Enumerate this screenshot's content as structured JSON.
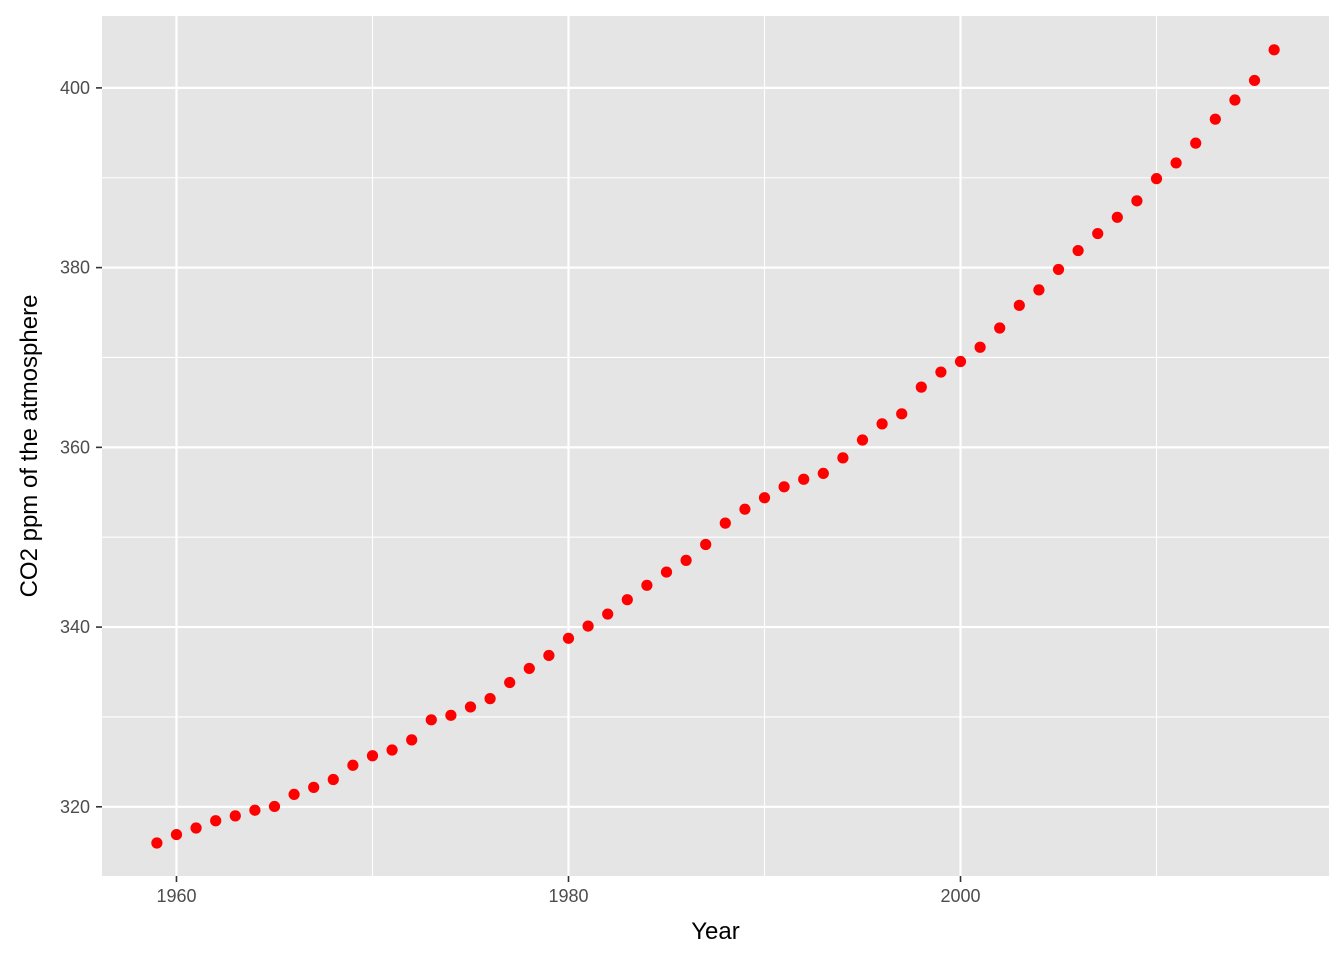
{
  "chart_data": {
    "type": "scatter",
    "title": "",
    "xlabel": "Year",
    "ylabel": "CO2 ppm of the atmosphere",
    "xlim": [
      1956.2,
      2018.8
    ],
    "ylim": [
      312.3,
      408.0
    ],
    "x_ticks": [
      1960,
      1980,
      2000
    ],
    "y_ticks": [
      320,
      340,
      360,
      380,
      400
    ],
    "grid": true,
    "panel_background": "#e5e5e5",
    "grid_color": "#ffffff",
    "point_color": "#ff0000",
    "legend": "none",
    "series": [
      {
        "x": [
          1959,
          1960,
          1961,
          1962,
          1963,
          1964,
          1965,
          1966,
          1967,
          1968,
          1969,
          1970,
          1971,
          1972,
          1973,
          1974,
          1975,
          1976,
          1977,
          1978,
          1979,
          1980,
          1981,
          1982,
          1983,
          1984,
          1985,
          1986,
          1987,
          1988,
          1989,
          1990,
          1991,
          1992,
          1993,
          1994,
          1995,
          1996,
          1997,
          1998,
          1999,
          2000,
          2001,
          2002,
          2003,
          2004,
          2005,
          2006,
          2007,
          2008,
          2009,
          2010,
          2011,
          2012,
          2013,
          2014,
          2015,
          2016
        ],
        "y": [
          315.97,
          316.91,
          317.64,
          318.45,
          318.99,
          319.62,
          320.04,
          321.38,
          322.16,
          323.04,
          324.62,
          325.68,
          326.32,
          327.45,
          329.68,
          330.18,
          331.11,
          332.04,
          333.83,
          335.4,
          336.84,
          338.75,
          340.11,
          341.45,
          343.05,
          344.65,
          346.12,
          347.42,
          349.19,
          351.57,
          353.12,
          354.39,
          355.61,
          356.45,
          357.1,
          358.83,
          360.82,
          362.61,
          363.73,
          366.7,
          368.38,
          369.55,
          371.14,
          373.28,
          375.8,
          377.52,
          379.8,
          381.9,
          383.79,
          385.6,
          387.43,
          389.9,
          391.65,
          393.85,
          396.52,
          398.65,
          400.83,
          404.24
        ]
      }
    ]
  }
}
